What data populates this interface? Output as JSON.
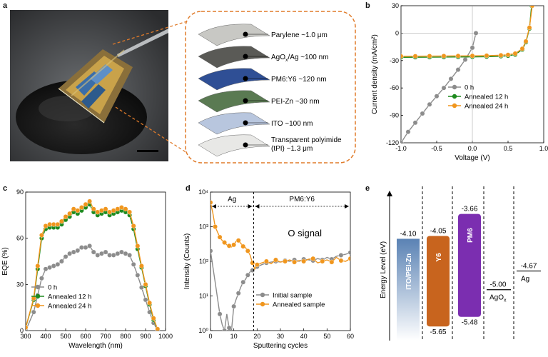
{
  "panel_labels": {
    "a": "a",
    "b": "b",
    "c": "c",
    "d": "d",
    "e": "e"
  },
  "stack_layers": [
    {
      "label": "Parylene  ~1.0 μm",
      "color": "#c8c8c4"
    },
    {
      "label": "AgOx/Ag ~100 nm",
      "color": "#5a5a56"
    },
    {
      "label": "PM6:Y6 ~120 nm",
      "color": "#2f4f95"
    },
    {
      "label": "PEI-Zn  ~30 nm",
      "color": "#5a7a52"
    },
    {
      "label": "ITO  ~100 nm",
      "color": "#b8c6de"
    },
    {
      "label": "Transparent polyimide (tPI) ~1.3 μm",
      "color": "#e8e8e6"
    }
  ],
  "chart_data": [
    {
      "id": "b",
      "type": "line",
      "xlabel": "Voltage (V)",
      "ylabel": "Current density (mA/cm²)",
      "xlim": [
        -1.0,
        1.0
      ],
      "ylim": [
        -120,
        30
      ],
      "xticks": [
        "-1.0",
        "-0.5",
        "0.0",
        "0.5",
        "1.0"
      ],
      "yticks": [
        "-120",
        "-90",
        "-60",
        "-30",
        "0",
        "30"
      ],
      "series": [
        {
          "name": "0 h",
          "color": "#8c8c8c",
          "x": [
            -1.0,
            -0.9,
            -0.8,
            -0.7,
            -0.6,
            -0.5,
            -0.4,
            -0.3,
            -0.2,
            -0.1,
            0.0,
            0.05
          ],
          "y": [
            -120,
            -108,
            -98,
            -88,
            -78,
            -69,
            -60,
            -50,
            -40,
            -29,
            -16,
            0
          ]
        },
        {
          "name": "Annealed 12 h",
          "color": "#1e8a1e",
          "x": [
            -1.0,
            -0.8,
            -0.6,
            -0.4,
            -0.2,
            0.0,
            0.2,
            0.4,
            0.5,
            0.6,
            0.7,
            0.75,
            0.8,
            0.83
          ],
          "y": [
            -26.5,
            -26.4,
            -26.3,
            -26.2,
            -26.1,
            -26,
            -25.8,
            -25.3,
            -24.8,
            -23.5,
            -18,
            -10,
            5,
            30
          ]
        },
        {
          "name": "Annealed 24 h",
          "color": "#f0961e",
          "x": [
            -1.0,
            -0.8,
            -0.6,
            -0.4,
            -0.2,
            0.0,
            0.2,
            0.4,
            0.5,
            0.6,
            0.7,
            0.75,
            0.8,
            0.84
          ],
          "y": [
            -25.3,
            -25.2,
            -25.1,
            -25.0,
            -24.9,
            -24.8,
            -24.6,
            -24.2,
            -23.7,
            -22.3,
            -17,
            -9,
            6,
            30
          ]
        }
      ]
    },
    {
      "id": "c",
      "type": "line",
      "xlabel": "Wavelength (nm)",
      "ylabel": "EQE (%)",
      "xlim": [
        300,
        1000
      ],
      "ylim": [
        0,
        90
      ],
      "xticks": [
        "300",
        "400",
        "500",
        "600",
        "700",
        "800",
        "900",
        "1000"
      ],
      "yticks": [
        "0",
        "30",
        "60",
        "90"
      ],
      "series": [
        {
          "name": "0 h",
          "color": "#8c8c8c",
          "x": [
            300,
            340,
            360,
            380,
            400,
            420,
            440,
            460,
            480,
            500,
            520,
            540,
            560,
            580,
            600,
            620,
            640,
            660,
            680,
            700,
            720,
            740,
            760,
            780,
            800,
            820,
            840,
            860,
            880,
            900,
            920,
            940,
            960
          ],
          "y": [
            0,
            12,
            23,
            34,
            40,
            41,
            42,
            43,
            45,
            48,
            50,
            51,
            52,
            54,
            54,
            55,
            51,
            49,
            50,
            51,
            49,
            49,
            50,
            51,
            50,
            49,
            43,
            36,
            28,
            20,
            12,
            5,
            0
          ]
        },
        {
          "name": "Annealed 12 h",
          "color": "#1e8a1e",
          "x": [
            300,
            340,
            360,
            380,
            400,
            420,
            440,
            460,
            480,
            500,
            520,
            540,
            560,
            580,
            600,
            620,
            640,
            660,
            680,
            700,
            720,
            740,
            760,
            780,
            800,
            820,
            840,
            860,
            880,
            900,
            920,
            940,
            960
          ],
          "y": [
            2,
            20,
            40,
            60,
            66,
            67,
            67,
            67,
            69,
            72,
            74,
            77,
            76,
            78,
            80,
            82,
            77,
            75,
            76,
            77,
            75,
            76,
            77,
            78,
            77,
            75,
            66,
            53,
            41,
            29,
            17,
            7,
            1
          ]
        },
        {
          "name": "Annealed 24 h",
          "color": "#f0961e",
          "x": [
            300,
            340,
            360,
            380,
            400,
            420,
            440,
            460,
            480,
            500,
            520,
            540,
            560,
            580,
            600,
            620,
            640,
            660,
            680,
            700,
            720,
            740,
            760,
            780,
            800,
            820,
            840,
            860,
            880,
            900,
            920,
            940,
            960
          ],
          "y": [
            2,
            21,
            42,
            62,
            68,
            69,
            69,
            69,
            71,
            74,
            76,
            79,
            78,
            80,
            82,
            84,
            79,
            77,
            78,
            79,
            77,
            78,
            79,
            80,
            79,
            77,
            68,
            55,
            42,
            30,
            18,
            8,
            1
          ]
        }
      ]
    },
    {
      "id": "d",
      "type": "line",
      "yscale": "log",
      "xlabel": "Sputtering cycles",
      "ylabel": "Intensity (Counts)",
      "xlim": [
        0,
        60
      ],
      "ylim": [
        1,
        10000
      ],
      "xticks": [
        "0",
        "10",
        "20",
        "30",
        "40",
        "50",
        "60"
      ],
      "yticks": [
        "10⁰",
        "10¹",
        "10²",
        "10³",
        "10⁴"
      ],
      "annotations": {
        "region1": "Ag",
        "region2": "PM6:Y6",
        "signal": "O signal",
        "divider_x": 18.5
      },
      "series": [
        {
          "name": "Initial sample",
          "color": "#8c8c8c",
          "x": [
            0,
            2,
            4,
            5,
            6,
            7,
            8,
            9,
            10,
            11,
            12,
            13,
            14,
            15,
            16,
            17,
            18,
            19,
            20,
            22,
            24,
            26,
            28,
            30,
            32,
            34,
            36,
            38,
            40,
            42,
            44,
            46,
            48,
            50,
            52,
            54,
            56,
            58,
            60
          ],
          "y": [
            200,
            25,
            3,
            1.5,
            1,
            3,
            1.2,
            1,
            5,
            8,
            12,
            18,
            25,
            30,
            40,
            50,
            55,
            60,
            70,
            80,
            90,
            95,
            100,
            95,
            105,
            100,
            110,
            100,
            115,
            110,
            105,
            120,
            110,
            130,
            115,
            140,
            150,
            160,
            180
          ]
        },
        {
          "name": "Annealed sample",
          "color": "#f0961e",
          "x": [
            0,
            1,
            2,
            3,
            4,
            5,
            6,
            7,
            8,
            9,
            10,
            11,
            12,
            13,
            14,
            15,
            16,
            17,
            18,
            19,
            20,
            22,
            24,
            26,
            28,
            30,
            32,
            34,
            36,
            38,
            40,
            42,
            44,
            46,
            48,
            50,
            52,
            54,
            56,
            58,
            60
          ],
          "y": [
            5000,
            2500,
            1000,
            700,
            500,
            400,
            350,
            300,
            280,
            260,
            300,
            380,
            400,
            330,
            270,
            250,
            200,
            150,
            90,
            60,
            80,
            90,
            100,
            85,
            110,
            95,
            100,
            110,
            95,
            105,
            100,
            115,
            120,
            90,
            100,
            110,
            95,
            130,
            105,
            100,
            120
          ]
        }
      ]
    },
    {
      "id": "e",
      "type": "bar",
      "ylabel": "Energy Level (eV)",
      "items": [
        {
          "name": "ITO/PEI-Zn",
          "top": -4.1,
          "top_label": "-4.10",
          "color": "#5a82b4"
        },
        {
          "name": "Y6",
          "top": -4.05,
          "bottom": -5.65,
          "top_label": "-4.05",
          "bottom_label": "-5.65",
          "color": "#c8641e"
        },
        {
          "name": "PM6",
          "top": -3.66,
          "bottom": -5.48,
          "top_label": "-3.66",
          "bottom_label": "-5.48",
          "color": "#7b2eb0"
        },
        {
          "name": "AgOx",
          "level": -5.0,
          "label": "-5.00"
        },
        {
          "name": "Ag",
          "level": -4.67,
          "label": "-4.67"
        }
      ]
    }
  ]
}
